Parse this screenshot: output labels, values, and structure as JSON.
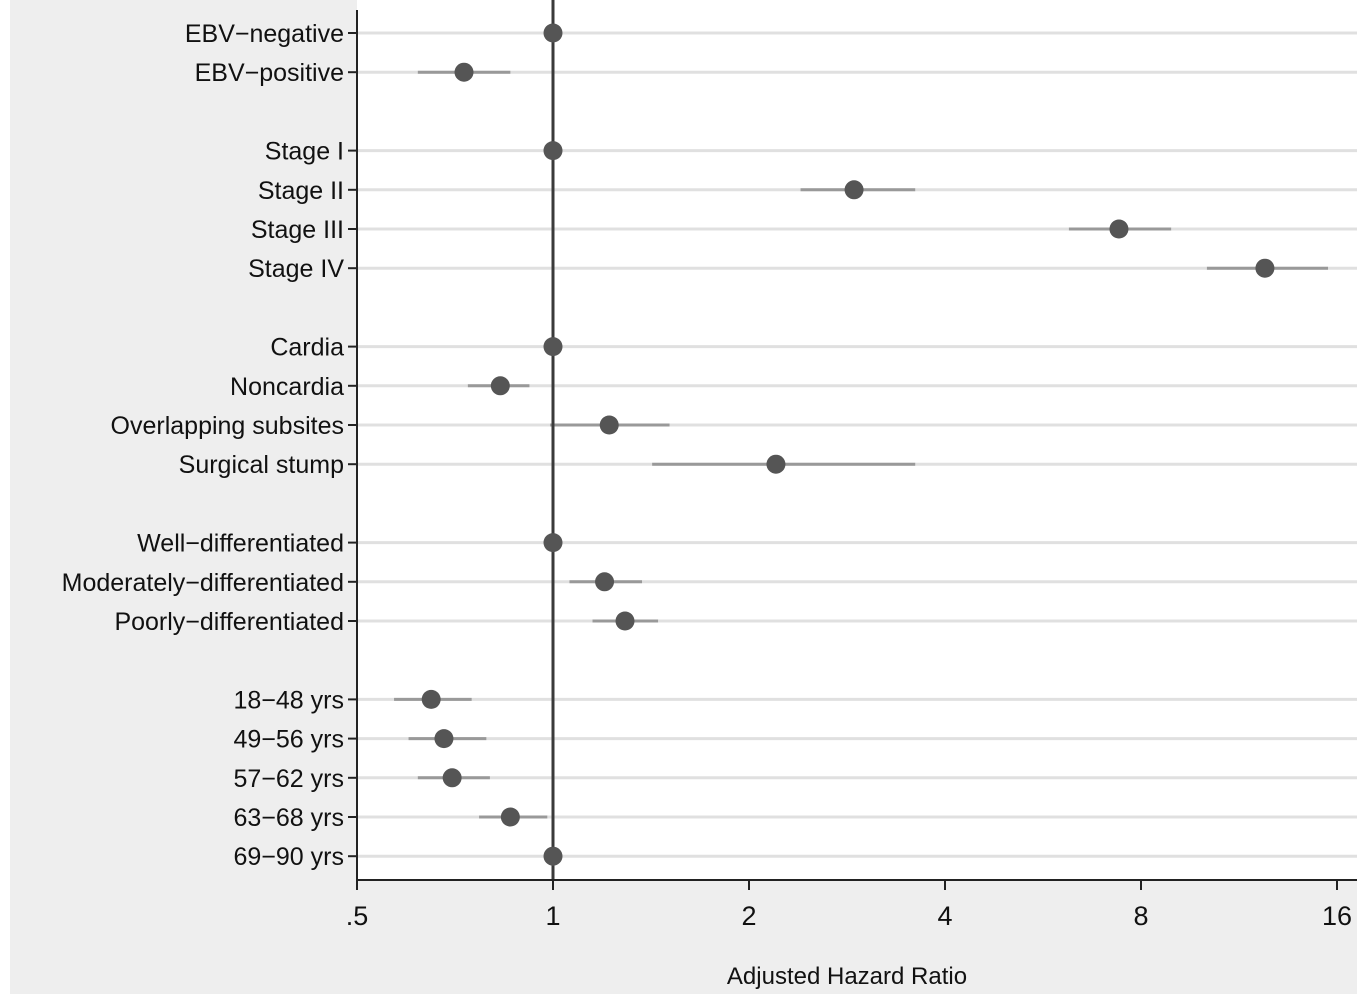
{
  "chart_data": {
    "type": "forest",
    "xlabel": "Adjusted Hazard Ratio",
    "xscale": "log2",
    "xlim": [
      0.5,
      16.5
    ],
    "xticks": [
      {
        "value": 0.5,
        "label": ".5"
      },
      {
        "value": 1,
        "label": "1"
      },
      {
        "value": 2,
        "label": "2"
      },
      {
        "value": 4,
        "label": "4"
      },
      {
        "value": 8,
        "label": "8"
      },
      {
        "value": 16,
        "label": "16"
      }
    ],
    "reference_line": 1,
    "grid": true,
    "rows": [
      {
        "label": "EBV−negative",
        "hr": 1.0,
        "lo": null,
        "hi": null
      },
      {
        "label": "EBV−positive",
        "hr": 0.73,
        "lo": 0.62,
        "hi": 0.86
      },
      {
        "label": null
      },
      {
        "label": "Stage I",
        "hr": 1.0,
        "lo": null,
        "hi": null
      },
      {
        "label": "Stage II",
        "hr": 2.9,
        "lo": 2.4,
        "hi": 3.6
      },
      {
        "label": "Stage III",
        "hr": 7.4,
        "lo": 6.2,
        "hi": 8.9
      },
      {
        "label": "Stage IV",
        "hr": 12.4,
        "lo": 10.1,
        "hi": 15.5
      },
      {
        "label": null
      },
      {
        "label": "Cardia",
        "hr": 1.0,
        "lo": null,
        "hi": null
      },
      {
        "label": "Noncardia",
        "hr": 0.83,
        "lo": 0.74,
        "hi": 0.92
      },
      {
        "label": "Overlapping subsites",
        "hr": 1.22,
        "lo": 0.99,
        "hi": 1.51
      },
      {
        "label": "Surgical stump",
        "hr": 2.2,
        "lo": 1.42,
        "hi": 3.6
      },
      {
        "label": null
      },
      {
        "label": "Well−differentiated",
        "hr": 1.0,
        "lo": null,
        "hi": null
      },
      {
        "label": "Moderately−differentiated",
        "hr": 1.2,
        "lo": 1.06,
        "hi": 1.37
      },
      {
        "label": "Poorly−differentiated",
        "hr": 1.29,
        "lo": 1.15,
        "hi": 1.45
      },
      {
        "label": null
      },
      {
        "label": "18−48 yrs",
        "hr": 0.65,
        "lo": 0.57,
        "hi": 0.75
      },
      {
        "label": "49−56 yrs",
        "hr": 0.68,
        "lo": 0.6,
        "hi": 0.79
      },
      {
        "label": "57−62 yrs",
        "hr": 0.7,
        "lo": 0.62,
        "hi": 0.8
      },
      {
        "label": "63−68 yrs",
        "hr": 0.86,
        "lo": 0.77,
        "hi": 0.98
      },
      {
        "label": "69−90 yrs",
        "hr": 1.0,
        "lo": null,
        "hi": null
      }
    ]
  },
  "colors": {
    "background": "#eeeeee",
    "plot_background": "#ffffff",
    "gridline": "#e0e0e0",
    "marker": "#555555",
    "ci_line": "#999999",
    "reference_line": "#3a3a3a",
    "axis": "#222222",
    "text": "#111111"
  }
}
